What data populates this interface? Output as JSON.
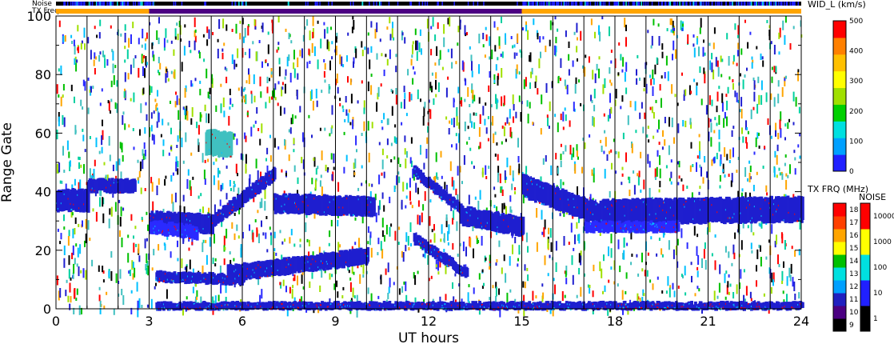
{
  "chart_data": {
    "type": "heatmap",
    "xlabel": "UT hours",
    "ylabel": "Range Gate",
    "xlim": [
      0,
      24
    ],
    "ylim": [
      0,
      100
    ],
    "x_ticks": [
      "0",
      "3",
      "6",
      "9",
      "12",
      "15",
      "18",
      "21",
      "24"
    ],
    "y_ticks": [
      "0",
      "20",
      "40",
      "60",
      "80",
      "100"
    ],
    "scan_line_hours": [
      1,
      2,
      3,
      4,
      5,
      6,
      7,
      8,
      9,
      10,
      11,
      12,
      13,
      14,
      15,
      16,
      17,
      18,
      19,
      20,
      21,
      22,
      23
    ],
    "top_bars": {
      "noise_label": "Noise",
      "txfreq_label": "TX Freq",
      "txfreq_segments": [
        {
          "start": 0,
          "end": 3,
          "color": "#ffa500"
        },
        {
          "start": 3,
          "end": 15,
          "color": "#4b0082"
        },
        {
          "start": 15,
          "end": 24,
          "color": "#ffa500"
        }
      ]
    },
    "echo_bands": [
      {
        "t_start": 3.0,
        "t_end": 5.0,
        "g_start": 30,
        "g_end": 29,
        "thickness": 6,
        "color": "#1f1fcf"
      },
      {
        "t_start": 5.0,
        "t_end": 7.0,
        "g_start": 30,
        "g_end": 46,
        "thickness": 4,
        "color": "#1f1fcf"
      },
      {
        "t_start": 3.0,
        "t_end": 4.5,
        "g_start": 28,
        "g_end": 26,
        "thickness": 4,
        "color": "#2a2aff"
      },
      {
        "t_start": 7.0,
        "t_end": 10.2,
        "g_start": 36,
        "g_end": 35,
        "thickness": 6,
        "color": "#1f1fcf"
      },
      {
        "t_start": 3.2,
        "t_end": 6.0,
        "g_start": 11,
        "g_end": 10,
        "thickness": 3,
        "color": "#1f1fcf"
      },
      {
        "t_start": 5.5,
        "t_end": 10.0,
        "g_start": 12,
        "g_end": 18,
        "thickness": 5,
        "color": "#1f1fcf"
      },
      {
        "t_start": 11.5,
        "t_end": 13.2,
        "g_start": 24,
        "g_end": 12,
        "thickness": 3,
        "color": "#1f1fcf"
      },
      {
        "t_start": 11.5,
        "t_end": 13.0,
        "g_start": 47,
        "g_end": 34,
        "thickness": 3,
        "color": "#1f1fcf"
      },
      {
        "t_start": 13.0,
        "t_end": 15.0,
        "g_start": 32,
        "g_end": 28,
        "thickness": 6,
        "color": "#1f1fcf"
      },
      {
        "t_start": 15.0,
        "t_end": 17.5,
        "g_start": 42,
        "g_end": 32,
        "thickness": 7,
        "color": "#1f1fcf"
      },
      {
        "t_start": 17.5,
        "t_end": 24.0,
        "g_start": 33,
        "g_end": 34,
        "thickness": 8,
        "color": "#1f1fcf"
      },
      {
        "t_start": 17.0,
        "t_end": 20.0,
        "g_start": 28,
        "g_end": 28,
        "thickness": 3,
        "color": "#2a2aff"
      },
      {
        "t_start": 0.0,
        "t_end": 1.0,
        "g_start": 37,
        "g_end": 37,
        "thickness": 7,
        "color": "#1f1fcf"
      },
      {
        "t_start": 1.0,
        "t_end": 2.5,
        "g_start": 42,
        "g_end": 42,
        "thickness": 4,
        "color": "#1f1fcf"
      },
      {
        "t_start": 4.8,
        "t_end": 5.6,
        "g_start": 57,
        "g_end": 56,
        "thickness": 8,
        "color": "#40c0c0"
      },
      {
        "t_start": 3.2,
        "t_end": 24.0,
        "g_start": 1,
        "g_end": 1,
        "thickness": 2,
        "color": "#1f1fcf"
      }
    ],
    "colorbars": [
      {
        "title": "WID_L (km/s)",
        "ticks": [
          "0",
          "100",
          "200",
          "300",
          "400",
          "500"
        ],
        "colors": [
          "#2020ff",
          "#00a0ff",
          "#00e0e0",
          "#00d000",
          "#a0e000",
          "#ffff00",
          "#ffc000",
          "#ff8000",
          "#ff0000"
        ]
      },
      {
        "title": "TX FRQ (MHz)",
        "ticks": [
          "9",
          "10",
          "11",
          "12",
          "13",
          "14",
          "15",
          "16",
          "17",
          "18"
        ],
        "colors": [
          "#000000",
          "#4b0082",
          "#2020c0",
          "#00a0ff",
          "#00e0e0",
          "#00c000",
          "#ffff00",
          "#ffa500",
          "#ff4000",
          "#ff0000"
        ]
      },
      {
        "title": "NOISE",
        "ticks": [
          "1",
          "10",
          "100",
          "1000",
          "10000"
        ],
        "colors": [
          "#000000",
          "#2020ff",
          "#00e0e0",
          "#ffff00",
          "#ff0000"
        ]
      }
    ]
  }
}
